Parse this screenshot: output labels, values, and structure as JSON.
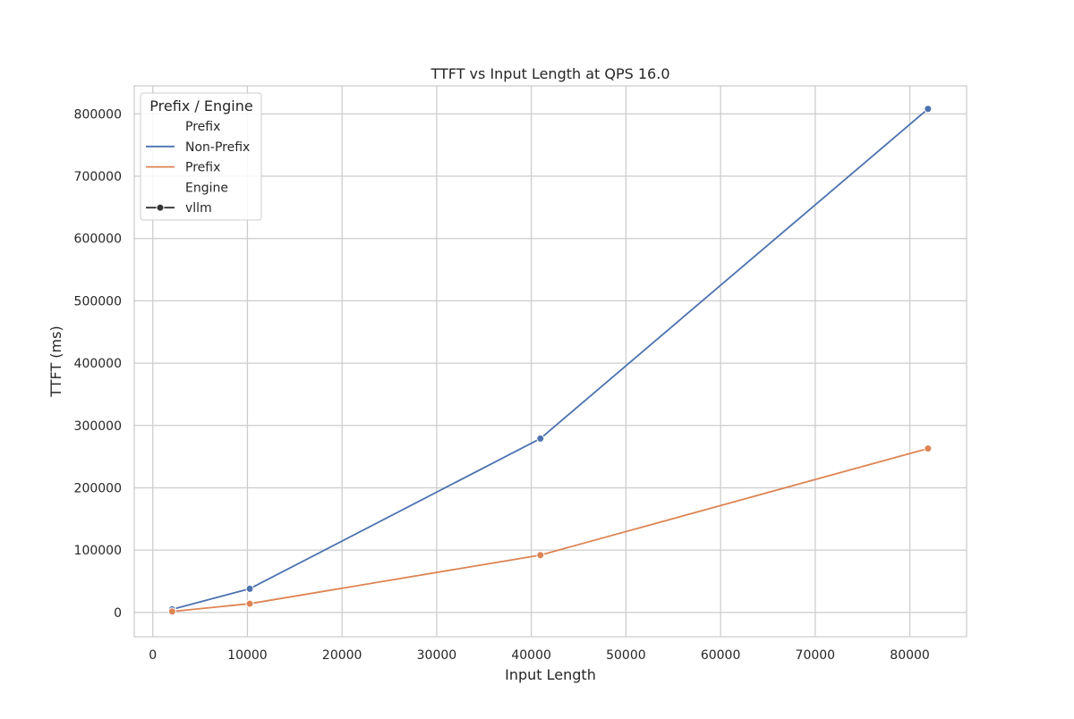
{
  "chart_data": {
    "type": "line",
    "title": "TTFT vs Input Length at QPS 16.0",
    "xlabel": "Input Length",
    "ylabel": "TTFT (ms)",
    "xlim": [
      -1960,
      86000
    ],
    "ylim": [
      -39000,
      845000
    ],
    "xticks": [
      0,
      10000,
      20000,
      30000,
      40000,
      50000,
      60000,
      70000,
      80000
    ],
    "yticks": [
      0,
      100000,
      200000,
      300000,
      400000,
      500000,
      600000,
      700000,
      800000
    ],
    "grid": true,
    "legend": {
      "title": "Prefix / Engine",
      "placement": "top-left",
      "entries": [
        {
          "label": "Prefix",
          "kind": "header"
        },
        {
          "label": "Non-Prefix",
          "kind": "line",
          "color": "#4c72b0"
        },
        {
          "label": "Prefix",
          "kind": "line",
          "color": "#dd8452"
        },
        {
          "label": "Engine",
          "kind": "header"
        },
        {
          "label": "vllm",
          "kind": "marker-line",
          "color": "#333333"
        }
      ]
    },
    "series": [
      {
        "name": "Non-Prefix",
        "color": "#4c72b0",
        "x": [
          2048,
          10240,
          40960,
          81920
        ],
        "y": [
          5000,
          38000,
          279000,
          808000
        ]
      },
      {
        "name": "Prefix",
        "color": "#dd8452",
        "x": [
          2048,
          10240,
          40960,
          81920
        ],
        "y": [
          1500,
          14000,
          92000,
          263000
        ]
      }
    ]
  }
}
